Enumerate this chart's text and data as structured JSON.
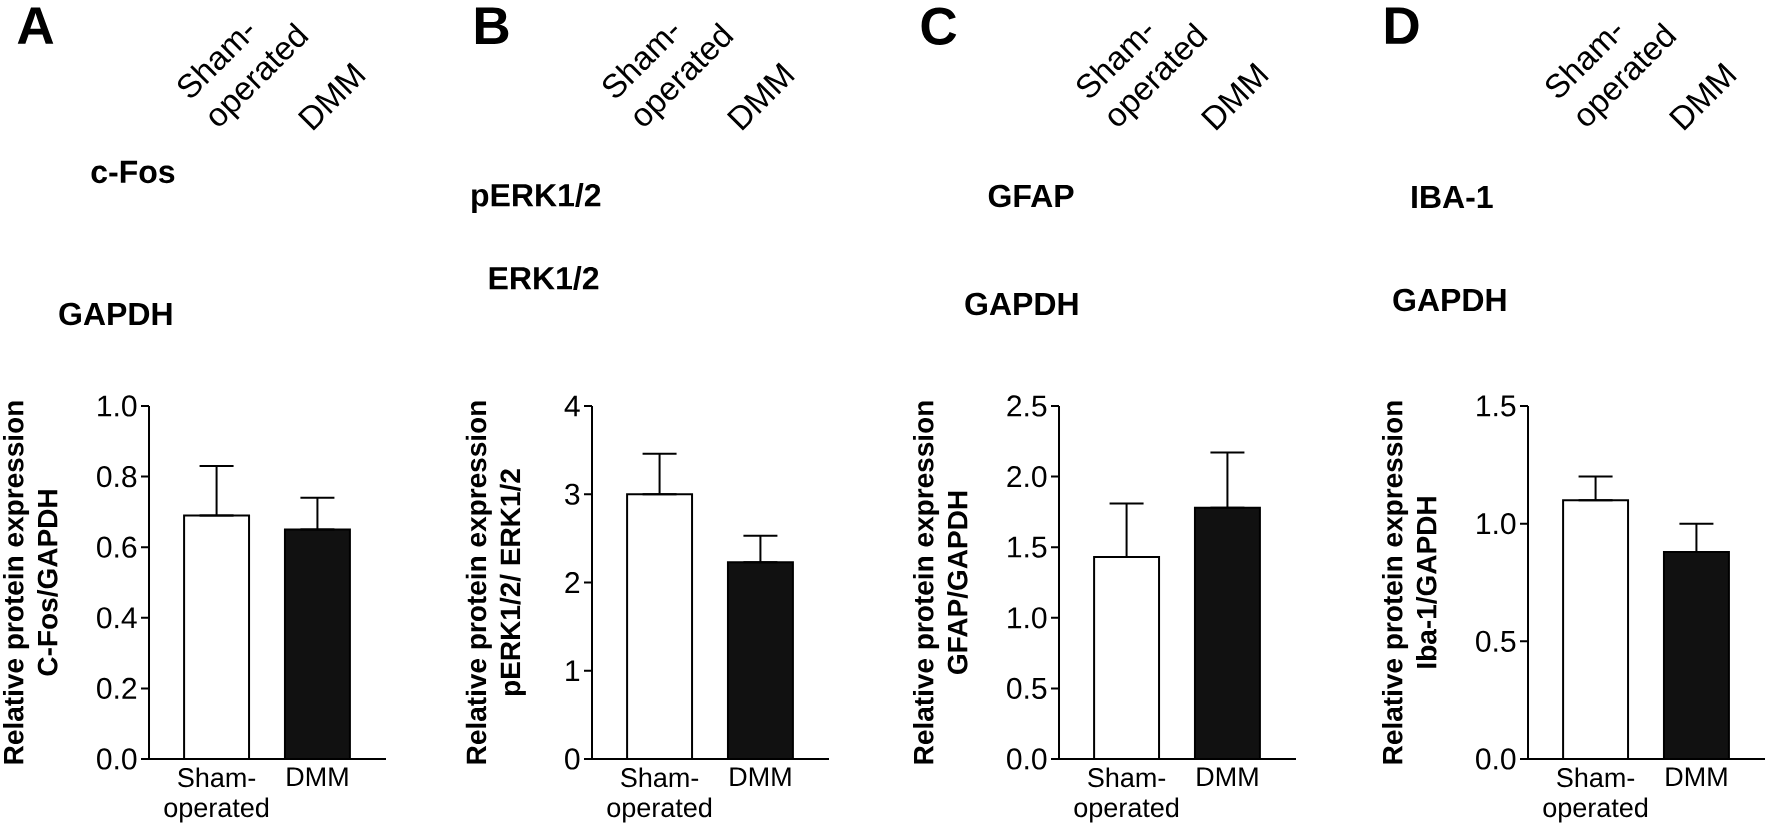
{
  "chart_data": [
    {
      "type": "bar",
      "title": "A",
      "ylabel": "Relative protein expression C-Fos/GAPDH",
      "categories": [
        "Sham-operated",
        "DMM"
      ],
      "values": [
        0.69,
        0.65
      ],
      "colors": [
        "#ffffff",
        "#111111"
      ],
      "errors": [
        [
          0.69,
          0.83
        ],
        [
          0.65,
          0.74
        ]
      ],
      "ylim": [
        0,
        1
      ],
      "yticks": [
        {
          "value": 0,
          "label": "0.0"
        },
        0.2,
        0.4,
        0.6,
        0.8,
        {
          "value": 1,
          "label": "1.0"
        }
      ],
      "annotations": [
        "Sham-operated",
        "DMM",
        "c-Fos",
        "GAPDH"
      ]
    },
    {
      "type": "bar",
      "title": "B",
      "ylabel": "Relative protein expression pERK1/2/ ERK1/2",
      "categories": [
        "Sham-operated",
        "DMM"
      ],
      "values": [
        3.0,
        2.23
      ],
      "colors": [
        "#ffffff",
        "#111111"
      ],
      "errors": [
        [
          3.0,
          3.46
        ],
        [
          2.23,
          2.53
        ]
      ],
      "ylim": [
        0,
        4
      ],
      "yticks": [
        0,
        1,
        2,
        3,
        4
      ],
      "annotations": [
        "Sham-operated",
        "DMM",
        "pERK1/2",
        "ERK1/2"
      ]
    },
    {
      "type": "bar",
      "title": "C",
      "ylabel": "Relative protein expression GFAP/GAPDH",
      "categories": [
        "Sham-operated",
        "DMM"
      ],
      "values": [
        1.43,
        1.78
      ],
      "colors": [
        "#ffffff",
        "#111111"
      ],
      "errors": [
        [
          1.43,
          1.81
        ],
        [
          1.78,
          2.17
        ]
      ],
      "ylim": [
        0,
        2.5
      ],
      "yticks": [
        {
          "value": 0,
          "label": "0.0"
        },
        0.5,
        {
          "value": 1,
          "label": "1.0"
        },
        1.5,
        {
          "value": 2,
          "label": "2.0"
        },
        2.5
      ],
      "annotations": [
        "Sham-operated",
        "DMM",
        "GFAP",
        "GAPDH"
      ]
    },
    {
      "type": "bar",
      "title": "D",
      "ylabel": "Relative protein expression Iba-1/GAPDH",
      "categories": [
        "Sham-operated",
        "DMM"
      ],
      "values": [
        1.1,
        0.88
      ],
      "colors": [
        "#ffffff",
        "#111111"
      ],
      "errors": [
        [
          1.1,
          1.2
        ],
        [
          0.88,
          1.0
        ]
      ],
      "ylim": [
        0,
        1.5
      ],
      "yticks": [
        {
          "value": 0,
          "label": "0.0"
        },
        0.5,
        {
          "value": 1,
          "label": "1.0"
        },
        1.5
      ],
      "annotations": [
        "Sham-operated",
        "DMM",
        "IBA-1",
        "GAPDH"
      ]
    }
  ]
}
